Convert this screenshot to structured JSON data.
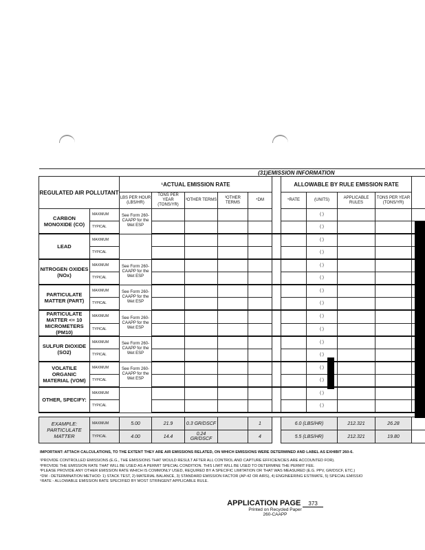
{
  "section_title": "(31)EMISSION INFORMATION",
  "headers": {
    "pollutant": "REGULATED AIR POLLUTANT",
    "actual": "¹ACTUAL EMISSION RATE",
    "allowable": "ALLOWABLE BY RULE EMISSION RATE",
    "lbs": "LBS PER HOUR (LBS/HR)",
    "tons": "TONS PER YEAR (TONS/YR)",
    "other1": "³OTHER TERMS",
    "other2": "³OTHER TERMS",
    "dm": "⁴DM",
    "rate": "⁵RATE",
    "units": "(UNITS)",
    "rules": "APPLICABLE RULES",
    "tons_allow": "TONS PER YEAR (TONS/YR)"
  },
  "row_labels": {
    "max": "MAXIMUM",
    "typ": "TYPICAL",
    "units_blank": "(        )"
  },
  "see_form": "See Form 260-CAAPP for the Wet ESP",
  "pollutants": [
    {
      "name": "CARBON MONOXIDE (CO)",
      "see_form": true
    },
    {
      "name": "LEAD",
      "see_form": false
    },
    {
      "name": "NITROGEN OXIDES (NOx)",
      "see_form": true
    },
    {
      "name": "PARTICULATE MATTER (PART)",
      "see_form": true
    },
    {
      "name": "PARTICULATE MATTER <= 10 MICROMETERS (PM10)",
      "see_form": true
    },
    {
      "name": "SULFUR DIOXIDE (SO2)",
      "see_form": true
    },
    {
      "name": "VOLATILE ORGANIC MATERIAL (VOM)",
      "see_form": true
    },
    {
      "name": "OTHER, SPECIFY:",
      "see_form": false
    }
  ],
  "example": {
    "name": "EXAMPLE: PARTICULATE MATTER",
    "max": {
      "lbs": "5.00",
      "tons": "21.9",
      "other": "0.3 GR/DSCF",
      "dm": "1",
      "rate": "6.0 (LBS/HR)",
      "rules": "212.321",
      "tons_allow": "26.28"
    },
    "typ": {
      "lbs": "4.00",
      "tons": "14.4",
      "other": "0.24 GR/DSCF",
      "dm": "4",
      "rate": "5.5 (LBS/HR)",
      "rules": "212.321",
      "tons_allow": "19.80"
    }
  },
  "notes": {
    "important": "IMPORTANT:  ATTACH CALCULATIONS, TO THE EXTENT THEY ARE AIR EMISSIONS RELATED, ON WHICH EMISSIONS WERE DETERMINED AND LABEL AS EXHIBIT 260-6.",
    "items": [
      "¹PROVIDE CONTROLLED EMISSIONS (E.G., THE EMISSIONS THAT WOULD RESULT AFTER ALL CONTROL AND CAPTURE EFFICIENCIES ARE ACCOUNTED FOR).",
      "²PROVIDE THE EMISSION RATE THAT WILL BE USED AS A PERMIT SPECIAL CONDITION.  THIS LIMIT WILL BE USED TO DETERMINE THE PERMIT FEE.",
      "³PLEASE PROVIDE ANY OTHER EMISSION RATE WHICH IS COMMONLY USED, REQUIRED BY A SPECIFIC LIMITATION OR THAT WAS MEASURED (E.G. PPV, GR/DSCF, ETC.)",
      "⁴DM - DETERMINATION METHOD: 1) STACK TEST, 2) MATERIAL BALANCE, 3) STANDARD EMISSION FACTOR (AP-42 OR AIRS), 4) ENGINEERING ESTIMATE, 5) SPECIAL EMISSIO",
      "⁵RATE - ALLOWABLE EMISSION RATE SPECIFIED BY MOST STRINGENT APPLICABLE RULE."
    ]
  },
  "footer": {
    "label": "APPLICATION PAGE",
    "page": "373",
    "recycled": "Printed on Recycled Paper",
    "form": "260-CAAPP"
  }
}
